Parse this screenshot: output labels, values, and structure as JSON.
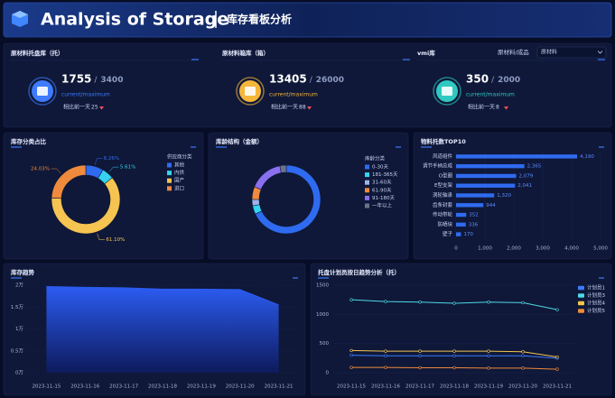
{
  "header": {
    "title": "Analysis of Storage",
    "subtitle": "库存看板分析"
  },
  "filter": {
    "label": "原材料/成品",
    "selected": "原材料"
  },
  "kpis": [
    {
      "title": "原材料托盘库（托）",
      "current": 1755,
      "maximum": 3400,
      "caption": "current/maximum",
      "compare": "相比前一天",
      "change": 25,
      "color": "#3d7bff"
    },
    {
      "title": "原材料箱库（箱）",
      "current": 13405,
      "maximum": 26000,
      "caption": "current/maximum",
      "compare": "相比前一天",
      "change": 88,
      "color": "#f5b63a"
    },
    {
      "title": "vmi库",
      "current": 350,
      "maximum": 2000,
      "caption": "current/maximum",
      "compare": "相比前一天",
      "change": 8,
      "color": "#2fc9c2"
    }
  ],
  "chart_data": [
    {
      "type": "pie",
      "title": "库存分类占比",
      "legend_title": "供应商分类",
      "categories": [
        "其他",
        "内供",
        "国产",
        "进口"
      ],
      "values": [
        8.26,
        5.61,
        61.1,
        24.03
      ],
      "value_labels": [
        "8.26%",
        "5.61%",
        "61.10%",
        "24.03%"
      ],
      "colors": [
        "#2f6bf0",
        "#35d3f0",
        "#f5c451",
        "#f08a3c"
      ]
    },
    {
      "type": "pie",
      "title": "库龄结构（金额）",
      "legend_title": "库龄分类",
      "categories": [
        "0-30天",
        "181-365天",
        "31-60天",
        "61-90天",
        "91-180天",
        "一年以上"
      ],
      "values": [
        68,
        4,
        3,
        6,
        16,
        3
      ],
      "colors": [
        "#2f6bf0",
        "#35d3f0",
        "#9fb3e8",
        "#f08a3c",
        "#8a6ff0",
        "#6c7388"
      ]
    },
    {
      "type": "bar",
      "orientation": "horizontal",
      "title": "物料托数TOP10",
      "categories": [
        "风道组件",
        "调节手柄总成",
        "O型圈",
        "E型支架",
        "涡轮轴承",
        "齿条封套",
        "传动带轮",
        "防晒块",
        "壁子"
      ],
      "values": [
        4190,
        2365,
        2079,
        2041,
        1320,
        944,
        352,
        336,
        170
      ],
      "value_labels": [
        "4,190",
        "2,365",
        "2,079",
        "2,041",
        "1,320",
        "944",
        "352",
        "336",
        "170"
      ],
      "color": "#2f6bf0",
      "xlim": [
        0,
        5000
      ],
      "xticks": [
        0,
        {
          "value": 1000,
          "label": "1,000"
        },
        {
          "value": 2000,
          "label": "2,000"
        },
        {
          "value": 3000,
          "label": "3,000"
        },
        {
          "value": 4000,
          "label": "4,000"
        },
        {
          "value": 5000,
          "label": "5,000"
        }
      ]
    },
    {
      "type": "area",
      "title": "库存趋势",
      "categories": [
        "2023-11-15",
        "2023-11-16",
        "2023-11-17",
        "2023-11-18",
        "2023-11-19",
        "2023-11-20",
        "2023-11-21"
      ],
      "values": [
        1.97,
        1.95,
        1.94,
        1.91,
        1.91,
        1.9,
        1.55
      ],
      "color": "#2a5bf0",
      "grid": true,
      "ylim": [
        0,
        2
      ],
      "yticks": [
        {
          "value": 0,
          "label": "0万"
        },
        {
          "value": 0.5,
          "label": "0.5万"
        },
        {
          "value": 1,
          "label": "1万"
        },
        {
          "value": 1.5,
          "label": "1.5万"
        },
        {
          "value": 2,
          "label": "2万"
        }
      ]
    },
    {
      "type": "line",
      "title": "托盘计划员按日趋势分析（托）",
      "categories": [
        "2023-11-15",
        "2023-11-16",
        "2023-11-17",
        "2023-11-18",
        "2023-11-19",
        "2023-11-20",
        "2023-11-21"
      ],
      "series": [
        {
          "name": "计划员1",
          "color": "#3d7bff",
          "values": [
            300,
            290,
            290,
            290,
            290,
            290,
            250
          ]
        },
        {
          "name": "计划员3",
          "color": "#4fd8e8",
          "values": [
            1250,
            1220,
            1210,
            1190,
            1210,
            1200,
            1080
          ]
        },
        {
          "name": "计划员4",
          "color": "#f5c451",
          "values": [
            380,
            370,
            370,
            370,
            370,
            360,
            270
          ]
        },
        {
          "name": "计划员5",
          "color": "#f08a3c",
          "values": [
            90,
            90,
            85,
            85,
            80,
            80,
            60
          ]
        }
      ],
      "grid": true,
      "ylim": [
        0,
        1500
      ],
      "yticks": [
        0,
        500,
        1000,
        1500
      ]
    }
  ]
}
